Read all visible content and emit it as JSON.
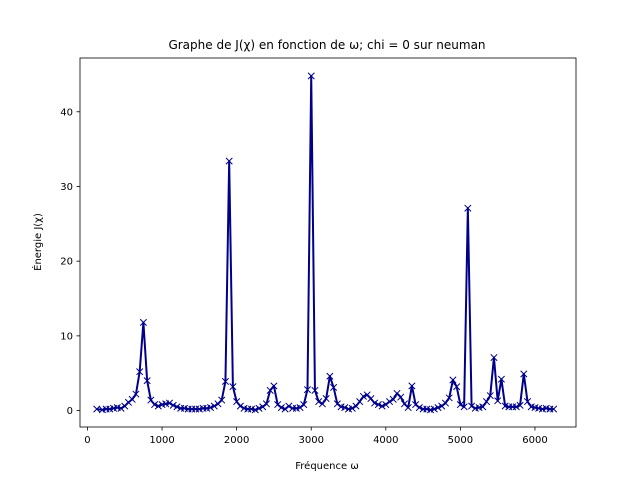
{
  "chart_data": {
    "type": "line",
    "title": "Graphe de J(χ) en fonction de ω; chi = 0 sur neuman",
    "xlabel": "Fréquence ω",
    "ylabel": "Énergie J(χ)",
    "xlim": [
      -100,
      6550
    ],
    "ylim": [
      -2.2,
      47.2
    ],
    "xticks": [
      0,
      1000,
      2000,
      3000,
      4000,
      5000,
      6000
    ],
    "yticks": [
      0,
      10,
      20,
      30,
      40
    ],
    "grid": false,
    "marker": "x",
    "color": "#00008b",
    "series": [
      {
        "x": [
          125,
          200,
          250,
          300,
          350,
          400,
          450,
          500,
          550,
          600,
          650,
          700,
          750,
          800,
          850,
          900,
          950,
          1000,
          1050,
          1100,
          1150,
          1200,
          1250,
          1300,
          1350,
          1400,
          1450,
          1500,
          1550,
          1600,
          1650,
          1700,
          1750,
          1800,
          1850,
          1900,
          1950,
          2000,
          2050,
          2100,
          2150,
          2200,
          2250,
          2300,
          2350,
          2400,
          2450,
          2500,
          2550,
          2600,
          2650,
          2700,
          2750,
          2800,
          2850,
          2900,
          2950,
          3000,
          3050,
          3100,
          3150,
          3200,
          3250,
          3300,
          3350,
          3400,
          3450,
          3500,
          3550,
          3600,
          3650,
          3700,
          3750,
          3800,
          3850,
          3900,
          3950,
          4000,
          4050,
          4100,
          4150,
          4200,
          4250,
          4300,
          4350,
          4400,
          4450,
          4500,
          4550,
          4600,
          4650,
          4700,
          4750,
          4800,
          4850,
          4900,
          4950,
          5000,
          5050,
          5100,
          5150,
          5200,
          5250,
          5300,
          5350,
          5400,
          5450,
          5500,
          5550,
          5600,
          5650,
          5700,
          5750,
          5800,
          5850,
          5900,
          5950,
          6000,
          6050,
          6100,
          6150,
          6200,
          6250
        ],
        "y": [
          0.2,
          0.1,
          0.2,
          0.2,
          0.3,
          0.4,
          0.3,
          0.6,
          1.1,
          1.5,
          2.2,
          5.2,
          11.8,
          4.0,
          1.4,
          0.8,
          0.6,
          0.8,
          0.9,
          1.0,
          0.7,
          0.5,
          0.3,
          0.3,
          0.2,
          0.2,
          0.2,
          0.2,
          0.3,
          0.3,
          0.4,
          0.6,
          0.9,
          1.4,
          3.9,
          33.4,
          3.2,
          1.2,
          0.6,
          0.3,
          0.2,
          0.2,
          0.1,
          0.3,
          0.5,
          0.9,
          2.7,
          3.3,
          0.8,
          0.4,
          0.2,
          0.6,
          0.3,
          0.3,
          0.4,
          0.8,
          2.8,
          44.8,
          2.7,
          1.2,
          0.9,
          1.6,
          4.6,
          3.1,
          0.9,
          0.5,
          0.4,
          0.2,
          0.3,
          0.6,
          1.2,
          1.9,
          2.1,
          1.6,
          1.0,
          0.8,
          0.6,
          0.8,
          1.2,
          1.5,
          2.3,
          1.8,
          0.9,
          0.4,
          3.3,
          0.8,
          0.4,
          0.2,
          0.2,
          0.1,
          0.2,
          0.4,
          0.6,
          1.0,
          1.7,
          4.1,
          3.2,
          0.8,
          0.5,
          27.1,
          0.6,
          0.3,
          0.4,
          0.5,
          1.2,
          2.0,
          7.1,
          1.3,
          4.2,
          0.6,
          0.5,
          0.5,
          0.5,
          0.7,
          4.9,
          1.2,
          0.5,
          0.4,
          0.3,
          0.2,
          0.3,
          0.2,
          0.2
        ]
      }
    ]
  }
}
